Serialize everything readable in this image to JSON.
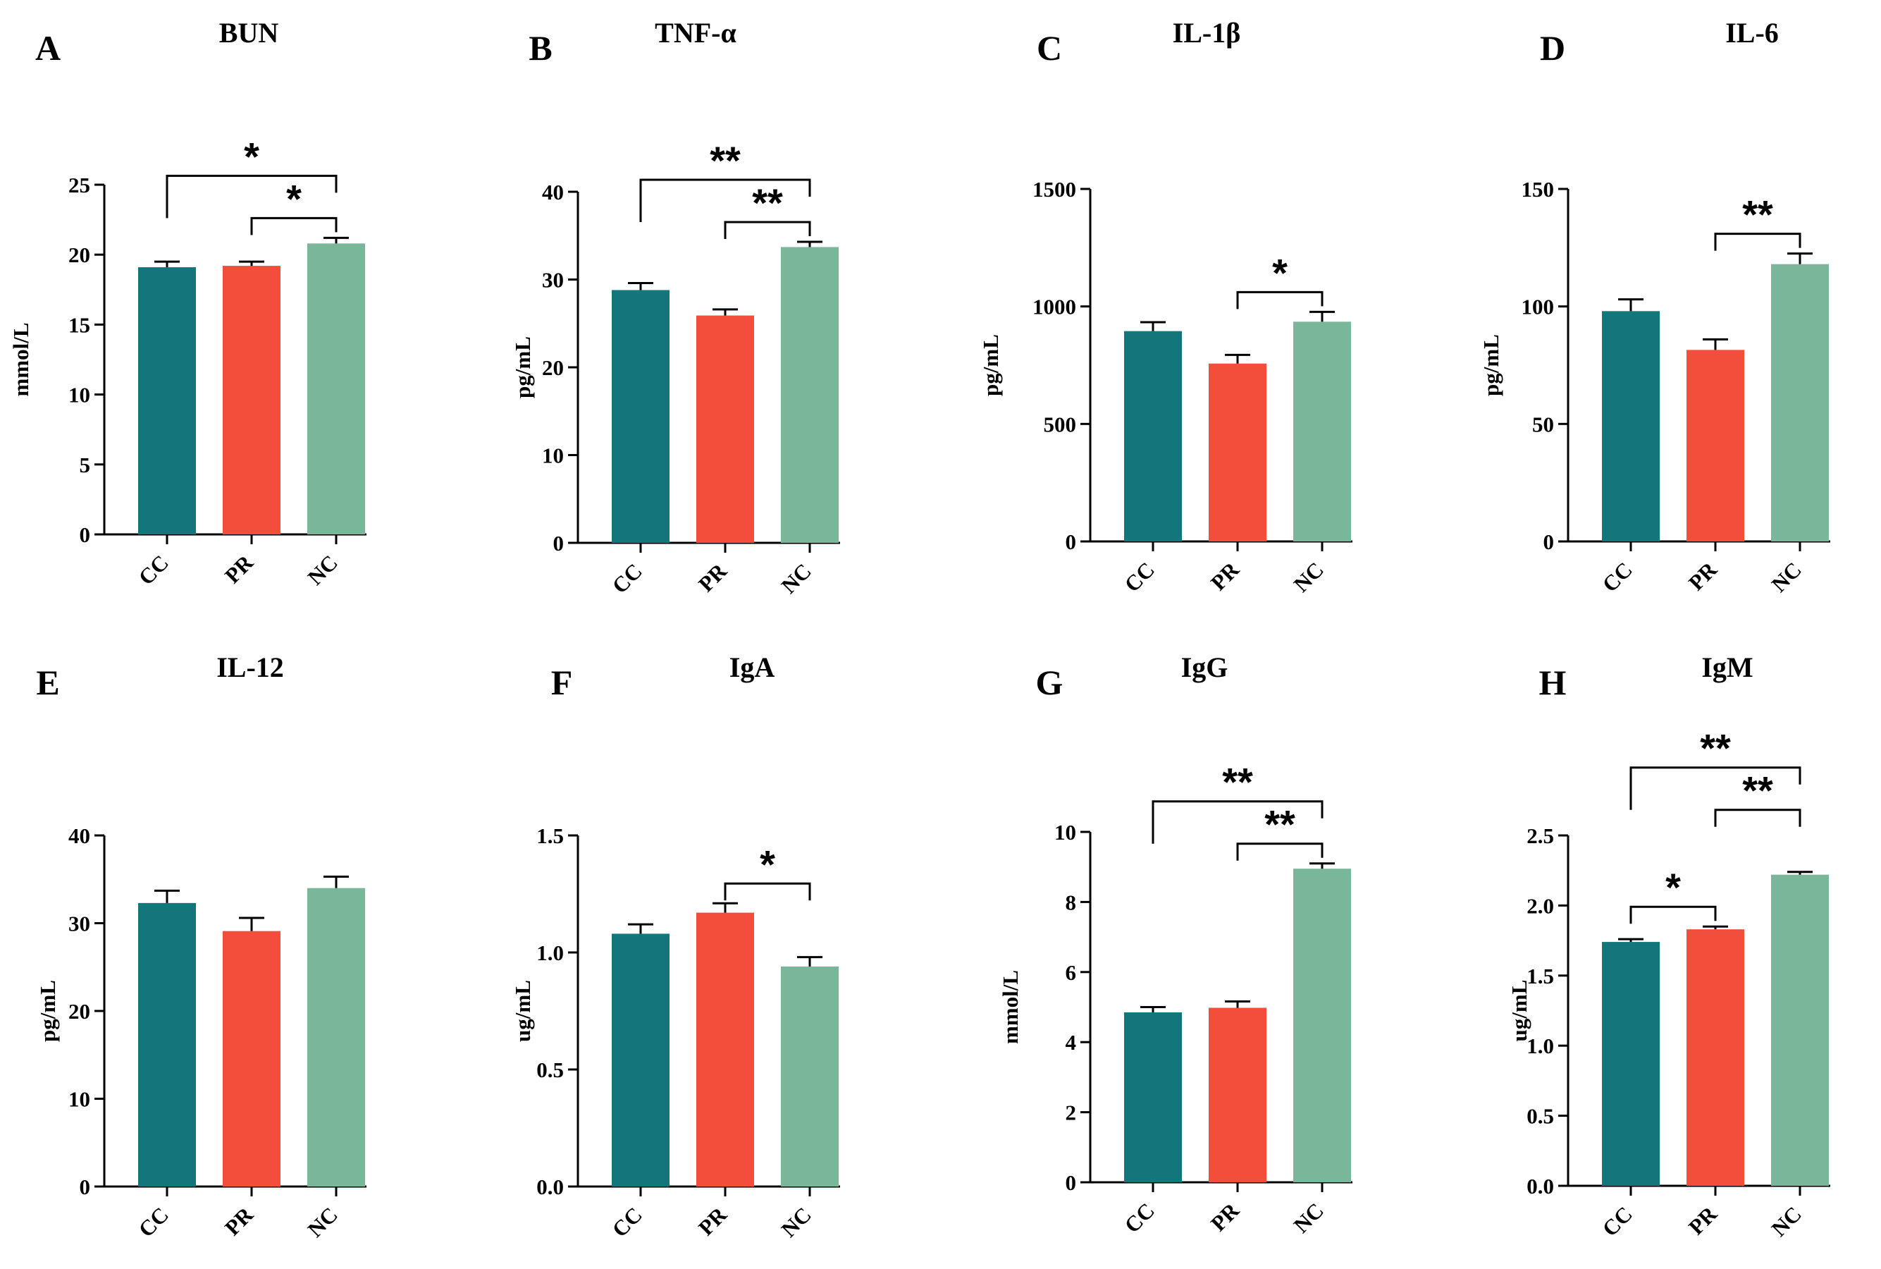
{
  "colors": {
    "CC": "#13767a",
    "PR": "#f24e3b",
    "NC": "#7ab69a"
  },
  "chart_data": [
    {
      "type": "bar",
      "letter": "A",
      "title": "BUN",
      "ylabel": "mmol/L",
      "categories": [
        "CC",
        "PR",
        "NC"
      ],
      "values": [
        19.1,
        19.2,
        20.8
      ],
      "errors": [
        0.4,
        0.3,
        0.4
      ],
      "ylim": [
        0,
        25
      ],
      "ticks": [
        0,
        5,
        10,
        15,
        20,
        25
      ],
      "tick_labels": [
        "0",
        "5",
        "10",
        "15",
        "20",
        "25"
      ],
      "significance": [
        {
          "from": 1,
          "to": 2,
          "label": "*"
        },
        {
          "from": 0,
          "to": 2,
          "label": "*"
        }
      ]
    },
    {
      "type": "bar",
      "letter": "B",
      "title": "TNF-α",
      "ylabel": "pg/mL",
      "categories": [
        "CC",
        "PR",
        "NC"
      ],
      "values": [
        28.8,
        25.9,
        33.7
      ],
      "errors": [
        0.8,
        0.7,
        0.6
      ],
      "ylim": [
        0,
        40
      ],
      "ticks": [
        0,
        10,
        20,
        30,
        40
      ],
      "tick_labels": [
        "0",
        "10",
        "20",
        "30",
        "40"
      ],
      "significance": [
        {
          "from": 1,
          "to": 2,
          "label": "**"
        },
        {
          "from": 0,
          "to": 2,
          "label": "**"
        }
      ]
    },
    {
      "type": "bar",
      "letter": "C",
      "title": "IL-1β",
      "ylabel": "pg/mL",
      "categories": [
        "CC",
        "PR",
        "NC"
      ],
      "values": [
        895,
        757,
        935
      ],
      "errors": [
        38,
        37,
        42
      ],
      "ylim": [
        0,
        1500
      ],
      "ticks": [
        0,
        500,
        1000,
        1500
      ],
      "tick_labels": [
        "0",
        "500",
        "1000",
        "1500"
      ],
      "significance": [
        {
          "from": 1,
          "to": 2,
          "label": "*"
        }
      ]
    },
    {
      "type": "bar",
      "letter": "D",
      "title": "IL-6",
      "ylabel": "pg/mL",
      "categories": [
        "CC",
        "PR",
        "NC"
      ],
      "values": [
        98,
        81.5,
        118
      ],
      "errors": [
        5,
        4.5,
        4.5
      ],
      "ylim": [
        0,
        150
      ],
      "ticks": [
        0,
        50,
        100,
        150
      ],
      "tick_labels": [
        "0",
        "50",
        "100",
        "150"
      ],
      "significance": [
        {
          "from": 1,
          "to": 2,
          "label": "**"
        }
      ]
    },
    {
      "type": "bar",
      "letter": "E",
      "title": "IL-12",
      "ylabel": "pg/mL",
      "categories": [
        "CC",
        "PR",
        "NC"
      ],
      "values": [
        32.3,
        29.1,
        34.0
      ],
      "errors": [
        1.4,
        1.5,
        1.3
      ],
      "ylim": [
        0,
        40
      ],
      "ticks": [
        0,
        10,
        20,
        30,
        40
      ],
      "tick_labels": [
        "0",
        "10",
        "20",
        "30",
        "40"
      ],
      "significance": []
    },
    {
      "type": "bar",
      "letter": "F",
      "title": "IgA",
      "ylabel": "ug/mL",
      "categories": [
        "CC",
        "PR",
        "NC"
      ],
      "values": [
        1.08,
        1.17,
        0.94
      ],
      "errors": [
        0.04,
        0.04,
        0.04
      ],
      "ylim": [
        0,
        1.5
      ],
      "ticks": [
        0,
        0.5,
        1.0,
        1.5
      ],
      "tick_labels": [
        "0.0",
        "0.5",
        "1.0",
        "1.5"
      ],
      "significance": [
        {
          "from": 1,
          "to": 2,
          "label": "*"
        }
      ]
    },
    {
      "type": "bar",
      "letter": "G",
      "title": "IgG",
      "ylabel": "mmol/L",
      "categories": [
        "CC",
        "PR",
        "NC"
      ],
      "values": [
        4.85,
        4.98,
        8.95
      ],
      "errors": [
        0.15,
        0.18,
        0.15
      ],
      "ylim": [
        0,
        10
      ],
      "ticks": [
        0,
        2,
        4,
        6,
        8,
        10
      ],
      "tick_labels": [
        "0",
        "2",
        "4",
        "6",
        "8",
        "10"
      ],
      "significance": [
        {
          "from": 1,
          "to": 2,
          "label": "**"
        },
        {
          "from": 0,
          "to": 2,
          "label": "**"
        }
      ]
    },
    {
      "type": "bar",
      "letter": "H",
      "title": "IgM",
      "ylabel": "ug/mL",
      "categories": [
        "CC",
        "PR",
        "NC"
      ],
      "values": [
        1.74,
        1.83,
        2.22
      ],
      "errors": [
        0.02,
        0.02,
        0.02
      ],
      "ylim": [
        0,
        2.5
      ],
      "ticks": [
        0,
        0.5,
        1.0,
        1.5,
        2.0,
        2.5
      ],
      "tick_labels": [
        "0.0",
        "0.5",
        "1.0",
        "1.5",
        "2.0",
        "2.5"
      ],
      "significance": [
        {
          "from": 0,
          "to": 1,
          "label": "*"
        },
        {
          "from": 1,
          "to": 2,
          "label": "**"
        },
        {
          "from": 0,
          "to": 2,
          "label": "**"
        }
      ]
    }
  ]
}
